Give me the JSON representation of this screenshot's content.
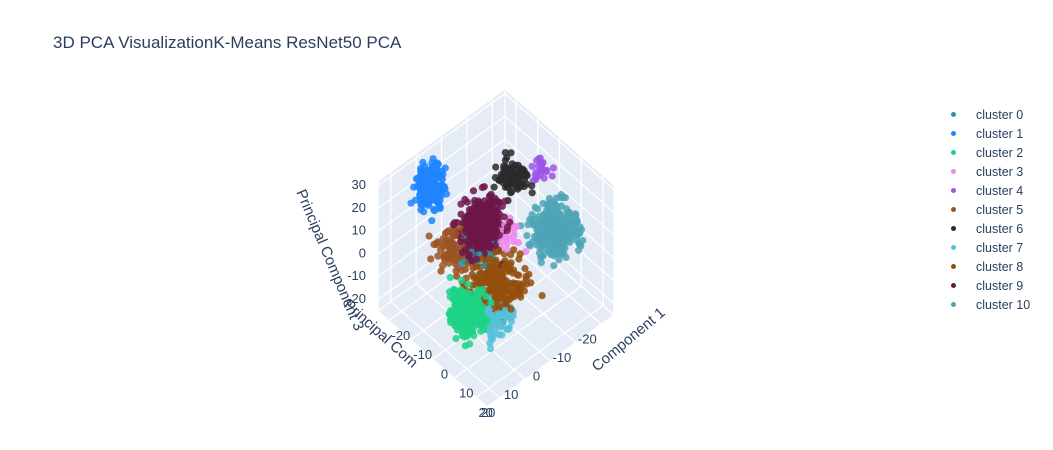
{
  "chart_data": {
    "type": "scatter",
    "dimensions": 3,
    "title": "3D PCA VisualizationK-Means ResNet50 PCA",
    "axes": {
      "x": {
        "label": "Principal Component 1",
        "visible_label": "Component 1",
        "ticks": [
          "20",
          "10",
          "0",
          "-10",
          "-20"
        ],
        "range": [
          -25,
          25
        ]
      },
      "y": {
        "label": "Principal Component 2",
        "visible_label": "Principal Com",
        "ticks": [
          "20",
          "10",
          "0",
          "-10",
          "-20"
        ],
        "range": [
          -25,
          25
        ]
      },
      "z": {
        "label": "Principal Component 3",
        "visible_label": "Principal Component 3",
        "ticks": [
          "30",
          "20",
          "10",
          "0",
          "-10",
          "-20"
        ],
        "range": [
          -25,
          32
        ]
      }
    },
    "grid": true,
    "legend_position": "right",
    "series": [
      {
        "name": "cluster 0",
        "color": "#2E91A1",
        "center": [
          -5,
          3,
          0
        ],
        "spread": [
          5,
          5,
          5
        ],
        "count": 40
      },
      {
        "name": "cluster 1",
        "color": "#1F85FF",
        "center": [
          -18,
          10,
          24
        ],
        "spread": [
          3,
          3,
          6
        ],
        "count": 190
      },
      {
        "name": "cluster 2",
        "color": "#1CD384",
        "center": [
          12,
          22,
          4
        ],
        "spread": [
          4,
          4,
          6
        ],
        "count": 260
      },
      {
        "name": "cluster 3",
        "color": "#EE86EE",
        "center": [
          0,
          -4,
          5
        ],
        "spread": [
          3,
          3,
          3
        ],
        "count": 20
      },
      {
        "name": "cluster 4",
        "color": "#9D55E6",
        "center": [
          -2,
          -20,
          20
        ],
        "spread": [
          3,
          3,
          3
        ],
        "count": 25
      },
      {
        "name": "cluster 5",
        "color": "#9B5323",
        "center": [
          -9,
          8,
          2
        ],
        "spread": [
          4,
          4,
          5
        ],
        "count": 90
      },
      {
        "name": "cluster 6",
        "color": "#2A2A2A",
        "center": [
          -6,
          -12,
          20
        ],
        "spread": [
          4,
          3,
          4
        ],
        "count": 80
      },
      {
        "name": "cluster 7",
        "color": "#55C1D8",
        "center": [
          8,
          10,
          -11
        ],
        "spread": [
          6,
          5,
          3
        ],
        "count": 200
      },
      {
        "name": "cluster 8",
        "color": "#944F0C",
        "center": [
          6,
          4,
          -3
        ],
        "spread": [
          6,
          6,
          5
        ],
        "count": 220
      },
      {
        "name": "cluster 9",
        "color": "#6E1649",
        "center": [
          -4,
          2,
          11
        ],
        "spread": [
          4,
          5,
          7
        ],
        "count": 330
      },
      {
        "name": "cluster 10",
        "color": "#4DA4B6",
        "center": [
          6,
          -18,
          2
        ],
        "spread": [
          5,
          5,
          5
        ],
        "count": 320
      }
    ]
  }
}
